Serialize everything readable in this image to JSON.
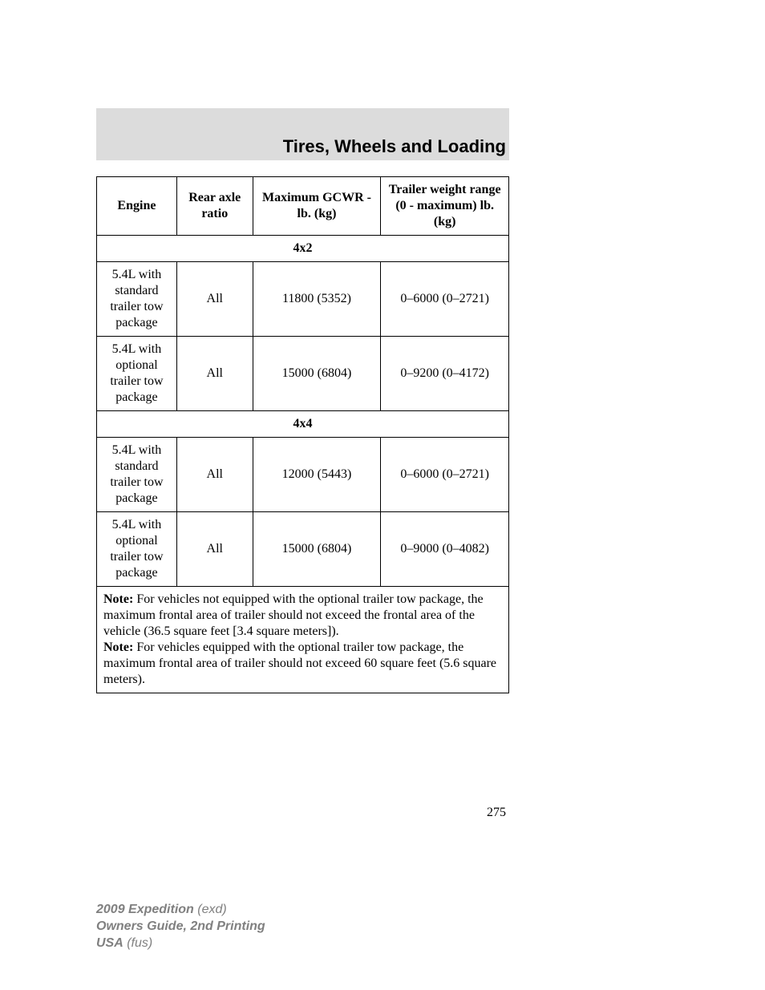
{
  "section_title": "Tires, Wheels and Loading",
  "table": {
    "headers": {
      "engine": "Engine",
      "axle": "Rear axle ratio",
      "gcwr": "Maximum GCWR - lb. (kg)",
      "trailer": "Trailer weight range (0 - maximum) lb. (kg)"
    },
    "section1": "4x2",
    "rows1": [
      {
        "engine": "5.4L with standard trailer tow package",
        "axle": "All",
        "gcwr": "11800 (5352)",
        "trailer": "0–6000 (0–2721)"
      },
      {
        "engine": "5.4L with optional trailer tow package",
        "axle": "All",
        "gcwr": "15000 (6804)",
        "trailer": "0–9200 (0–4172)"
      }
    ],
    "section2": "4x4",
    "rows2": [
      {
        "engine": "5.4L with standard trailer tow package",
        "axle": "All",
        "gcwr": "12000 (5443)",
        "trailer": "0–6000 (0–2721)"
      },
      {
        "engine": "5.4L with optional trailer tow package",
        "axle": "All",
        "gcwr": "15000 (6804)",
        "trailer": "0–9000 (0–4082)"
      }
    ],
    "note_label": "Note:",
    "note1_text": " For vehicles not equipped with the optional trailer tow package, the maximum frontal area of trailer should not exceed the frontal area of the vehicle (36.5 square feet [3.4 square meters]).",
    "note2_text": " For vehicles equipped with the optional trailer tow package, the maximum frontal area of trailer should not exceed 60 square feet (5.6 square meters)."
  },
  "page_number": "275",
  "footer": {
    "line1a": "2009 Expedition",
    "line1b": " (exd)",
    "line2": "Owners Guide, 2nd Printing",
    "line3a": "USA",
    "line3b": " (fus)"
  },
  "colors": {
    "band_bg": "#dcdcdc",
    "text": "#000000",
    "footer_text": "#808080",
    "page_bg": "#ffffff",
    "border": "#000000"
  },
  "widths": {
    "col_engine": 100,
    "col_axle": 95,
    "col_gcwr": 160,
    "col_trailer": 160
  }
}
